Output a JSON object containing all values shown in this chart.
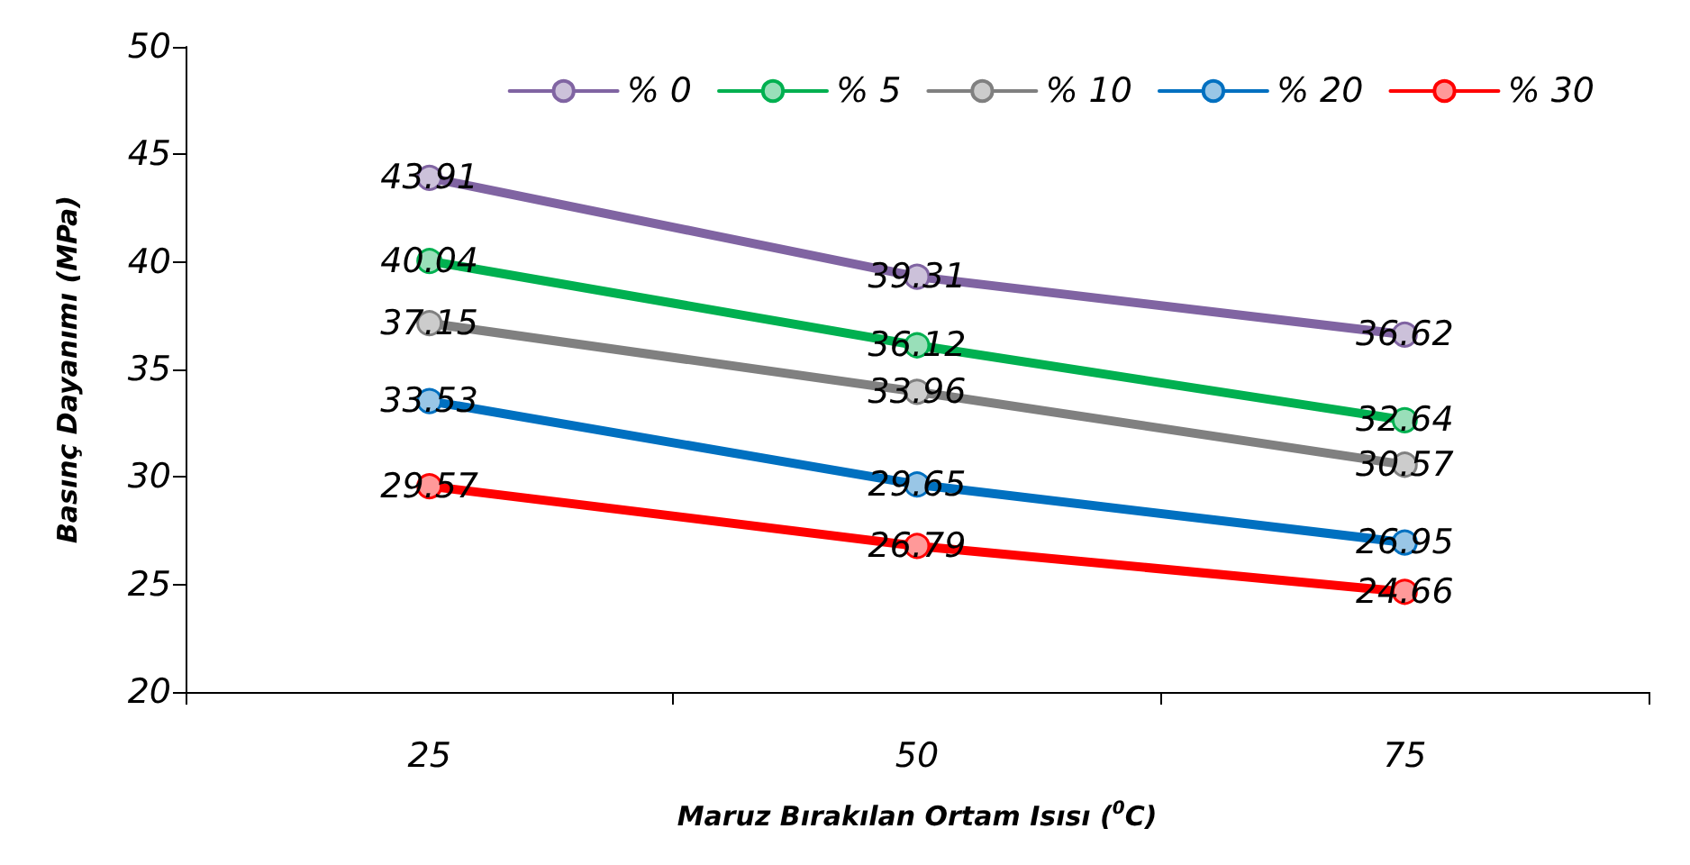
{
  "chart_data": {
    "type": "line",
    "xlabel": "Maruz Bırakılan Ortam Isısı ($^{0}$C)",
    "ylabel": "Basınç Dayanımı (MPa)",
    "categories": [
      "25",
      "50",
      "75"
    ],
    "series": [
      {
        "name": "% 0",
        "color": "#8064a2",
        "values": [
          43.91,
          39.31,
          36.62
        ]
      },
      {
        "name": "% 5",
        "color": "#00b050",
        "values": [
          40.04,
          36.12,
          32.64
        ]
      },
      {
        "name": "% 10",
        "color": "#808080",
        "values": [
          37.15,
          33.96,
          30.57
        ]
      },
      {
        "name": "% 20",
        "color": "#0070c0",
        "values": [
          33.53,
          29.65,
          26.95
        ]
      },
      {
        "name": "% 30",
        "color": "#ff0000",
        "values": [
          29.57,
          26.79,
          24.66
        ]
      }
    ],
    "ylim": [
      20,
      50
    ],
    "yticks": [
      20,
      25,
      30,
      35,
      40,
      45,
      50
    ],
    "data_labels": true,
    "legend": "top right",
    "grid": false,
    "marker": "circle"
  }
}
